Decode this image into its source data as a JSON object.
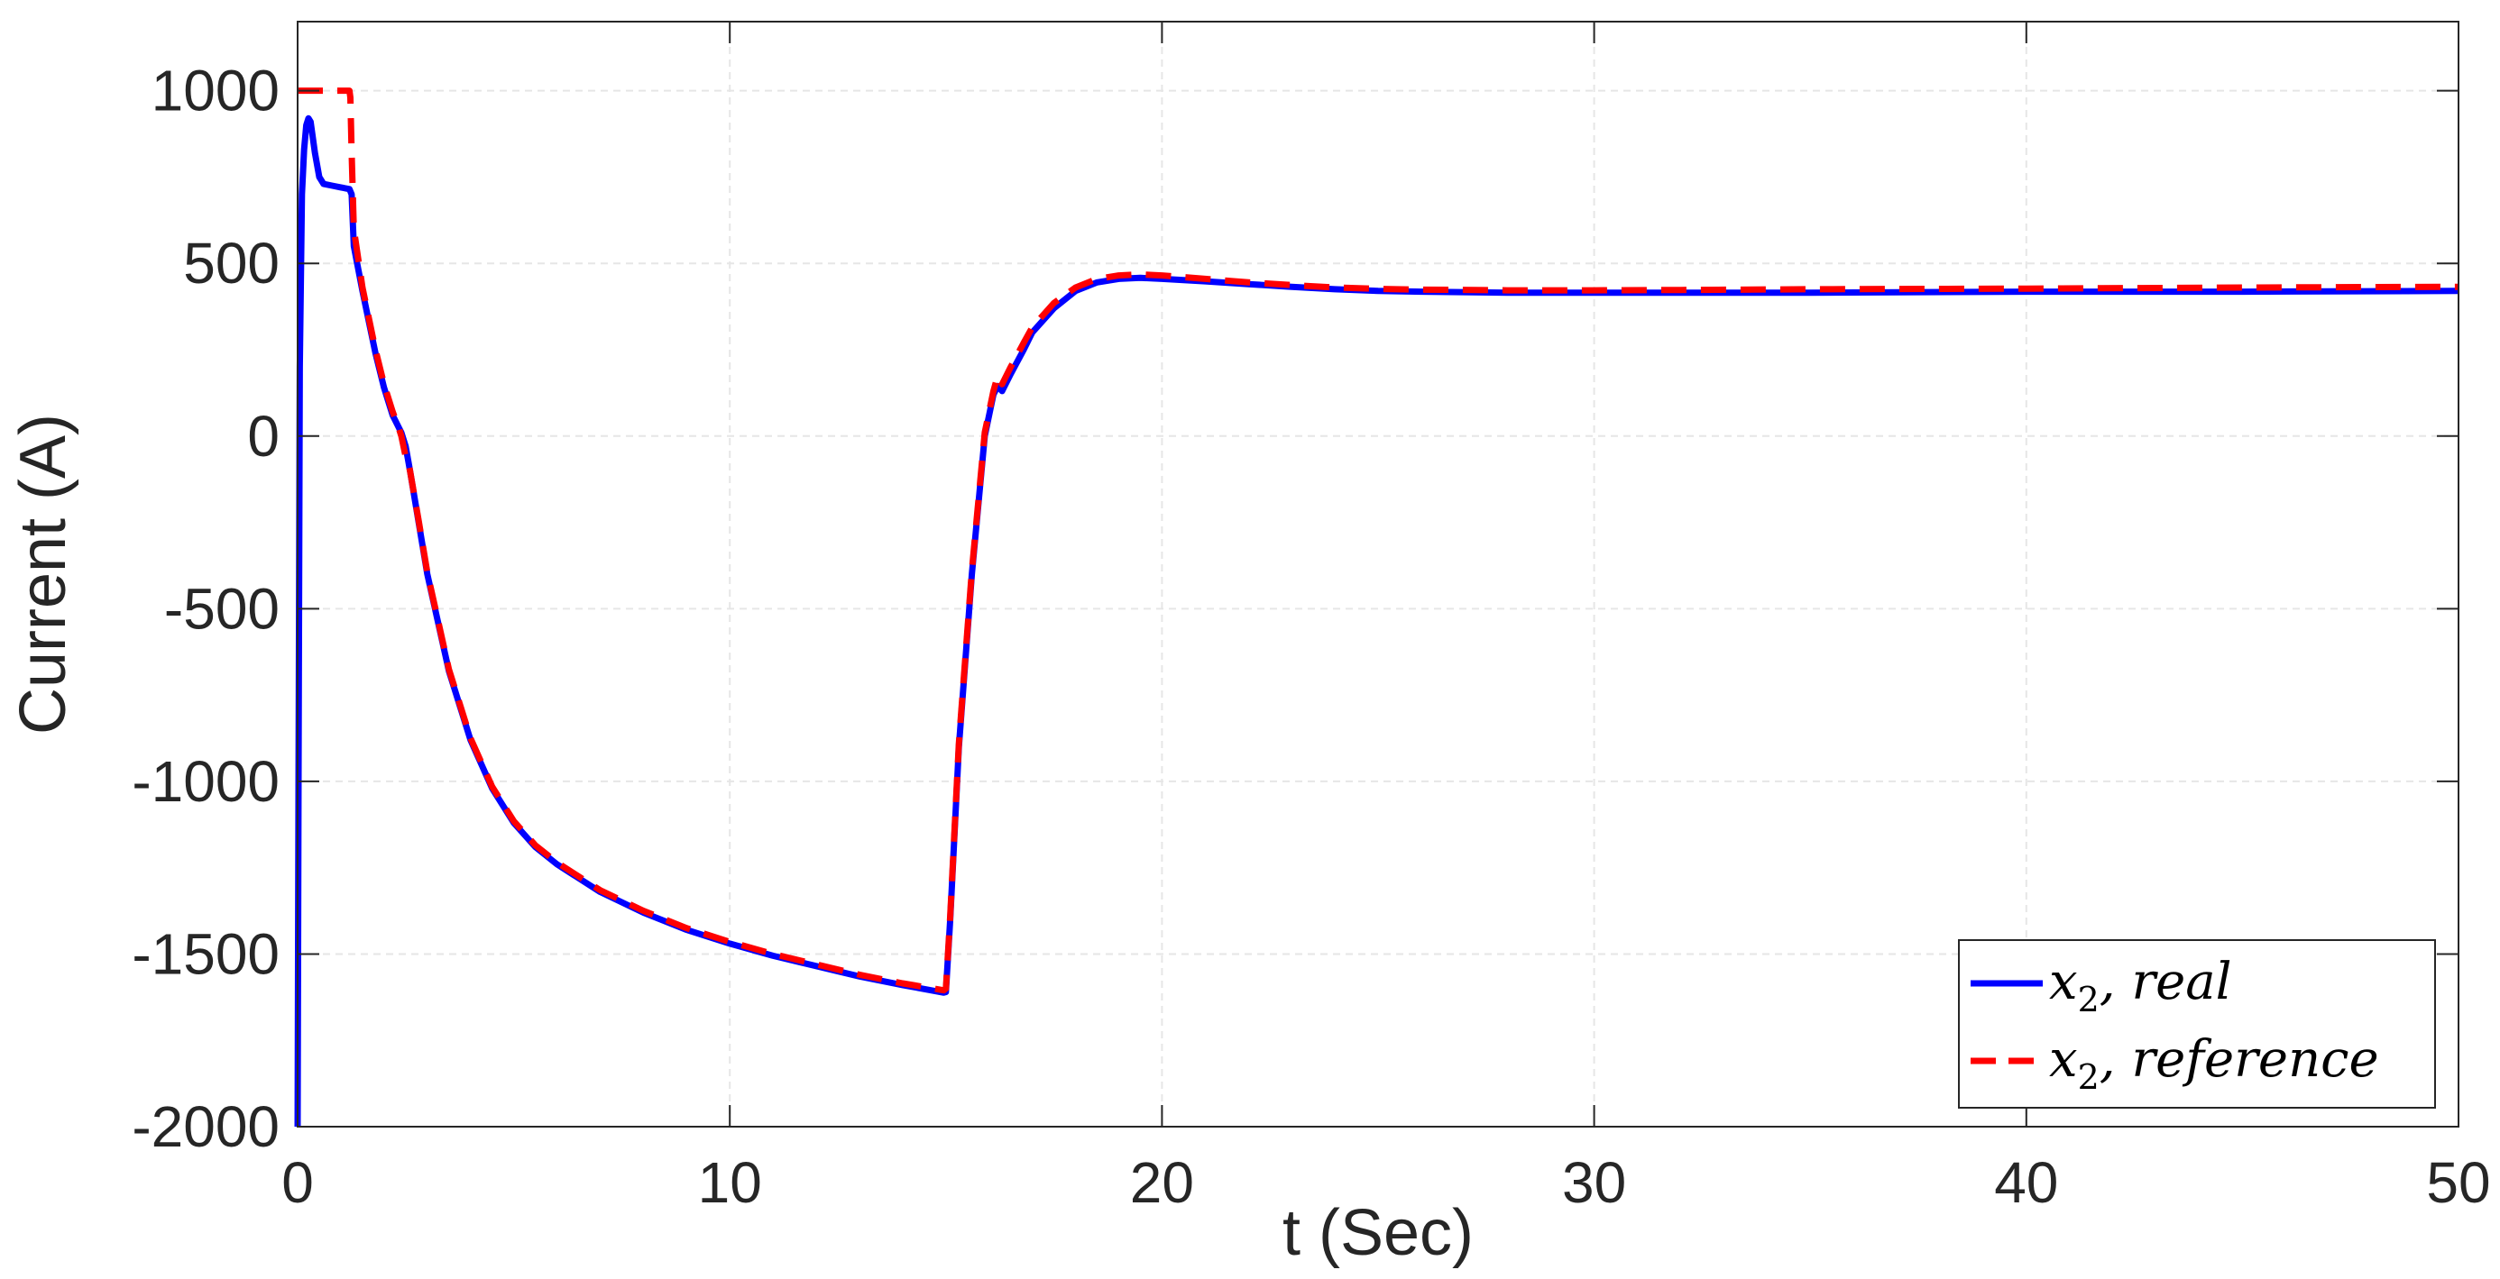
{
  "chart_data": {
    "type": "line",
    "title": "",
    "xlabel": "t (Sec)",
    "ylabel": "Current (A)",
    "xlim": [
      0,
      50
    ],
    "ylim": [
      -2000,
      1200
    ],
    "xticks": [
      0,
      10,
      20,
      30,
      40,
      50
    ],
    "yticks": [
      -2000,
      -1500,
      -1000,
      -500,
      0,
      500,
      1000
    ],
    "xtick_labels": [
      "0",
      "10",
      "20",
      "30",
      "40",
      "50"
    ],
    "ytick_labels": [
      "-2000",
      "-1500",
      "-1000",
      "-500",
      "0",
      "500",
      "1000"
    ],
    "grid": true,
    "legend_position": "bottom-right",
    "series": [
      {
        "name": "x_2, real",
        "legend_main": "x",
        "legend_sub": "2",
        "legend_rest": ", real",
        "color": "#0000ff",
        "style": "solid",
        "x": [
          0,
          0.02,
          0.05,
          0.1,
          0.15,
          0.2,
          0.25,
          0.3,
          0.4,
          0.5,
          0.6,
          0.8,
          1.0,
          1.2,
          1.25,
          1.3,
          1.5,
          1.8,
          2.0,
          2.2,
          2.4,
          2.5,
          2.6,
          2.8,
          3.0,
          3.5,
          4.0,
          4.5,
          5.0,
          5.5,
          6.0,
          7.0,
          8.0,
          9.0,
          10.0,
          11.0,
          12.0,
          13.0,
          14.0,
          14.95,
          15.0,
          15.1,
          15.3,
          15.6,
          15.9,
          16.1,
          16.2,
          16.3,
          16.5,
          16.8,
          17.0,
          17.5,
          18.0,
          18.5,
          19.0,
          19.5,
          20.0,
          21.0,
          22.0,
          23.0,
          24.0,
          25.0,
          26.0,
          28.0,
          30.0,
          32.0,
          35.0,
          40.0,
          45.0,
          50.0
        ],
        "y": [
          -2000,
          -1000,
          200,
          700,
          830,
          900,
          920,
          910,
          820,
          750,
          730,
          725,
          720,
          715,
          700,
          550,
          420,
          240,
          140,
          60,
          10,
          -30,
          -100,
          -250,
          -400,
          -680,
          -880,
          -1020,
          -1120,
          -1190,
          -1240,
          -1320,
          -1380,
          -1430,
          -1470,
          -1505,
          -1535,
          -1565,
          -1590,
          -1612,
          -1610,
          -1400,
          -900,
          -400,
          0,
          120,
          145,
          130,
          180,
          250,
          300,
          370,
          420,
          445,
          455,
          458,
          455,
          448,
          440,
          432,
          425,
          420,
          418,
          415,
          415,
          415,
          415,
          418,
          418,
          420
        ]
      },
      {
        "name": "x_2, reference",
        "legend_main": "x",
        "legend_sub": "2",
        "legend_rest": ", reference",
        "color": "#ff0000",
        "style": "dashed",
        "x": [
          0,
          0.05,
          0.5,
          1.0,
          1.2,
          1.22,
          1.25,
          1.3,
          1.5,
          1.8,
          2.0,
          2.2,
          2.35,
          2.4,
          2.5,
          2.55,
          2.6,
          2.8,
          3.0,
          3.5,
          4.0,
          4.5,
          5.0,
          5.5,
          6.0,
          7.0,
          8.0,
          9.0,
          10.0,
          11.0,
          12.0,
          13.0,
          14.0,
          14.95,
          15.0,
          15.1,
          15.3,
          15.6,
          15.9,
          16.1,
          16.2,
          16.3,
          16.5,
          16.8,
          17.0,
          17.5,
          18.0,
          18.5,
          19.0,
          19.5,
          20.0,
          21.0,
          22.0,
          23.0,
          24.0,
          25.0,
          26.0,
          28.0,
          30.0,
          32.0,
          35.0,
          40.0,
          45.0,
          50.0
        ],
        "y": [
          1000,
          1000,
          1000,
          1000,
          1000,
          980,
          820,
          600,
          430,
          250,
          150,
          70,
          20,
          0,
          -60,
          -70,
          -100,
          -245,
          -395,
          -675,
          -875,
          -1015,
          -1115,
          -1185,
          -1235,
          -1315,
          -1375,
          -1425,
          -1465,
          -1500,
          -1530,
          -1560,
          -1585,
          -1605,
          -1600,
          -1390,
          -890,
          -390,
          10,
          130,
          175,
          150,
          200,
          270,
          315,
          385,
          430,
          455,
          465,
          468,
          465,
          455,
          445,
          437,
          430,
          426,
          424,
          422,
          422,
          423,
          425,
          427,
          430,
          432
        ]
      }
    ]
  }
}
